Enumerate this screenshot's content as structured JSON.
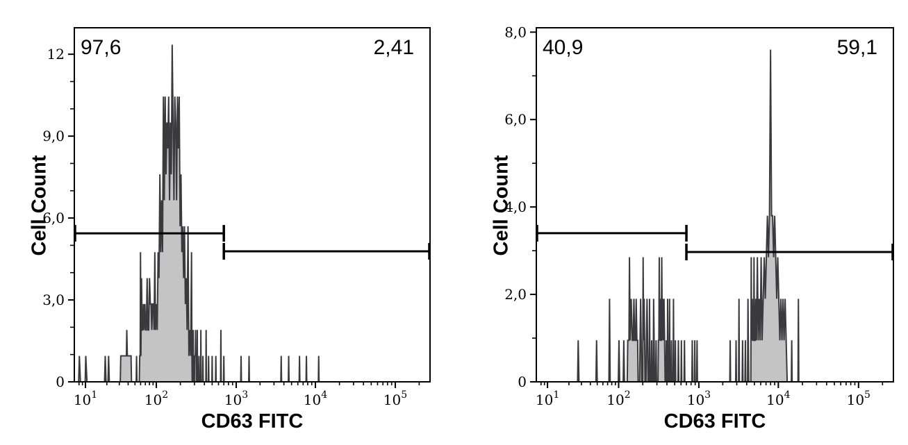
{
  "chart_data": [
    {
      "type": "area",
      "title": "",
      "xlabel": "CD63 FITC",
      "ylabel": "Cell Count",
      "x_scale": "biexponential-log",
      "x_range_log": [
        0.833,
        5.4375
      ],
      "x_ticks": [
        {
          "base": "10",
          "exp": "1",
          "log": 1
        },
        {
          "base": "10",
          "exp": "2",
          "log": 2
        },
        {
          "base": "10",
          "exp": "3",
          "log": 3
        },
        {
          "base": "10",
          "exp": "4",
          "log": 4
        },
        {
          "base": "10",
          "exp": "5",
          "log": 5
        }
      ],
      "ylim": [
        0,
        12.97
      ],
      "y_ticks": [
        {
          "label": "0",
          "v": 0
        },
        {
          "label": "3,0",
          "v": 3
        },
        {
          "label": "6,0",
          "v": 6
        },
        {
          "label": "9,0",
          "v": 9
        },
        {
          "label": "12",
          "v": 12
        }
      ],
      "y_minor_step": 1,
      "gate_labels": {
        "left": "97,6",
        "right": "2,41"
      },
      "gates": [
        {
          "y": 5.44,
          "x_from": null,
          "x_to": 700
        },
        {
          "y": 4.78,
          "x_from": 700,
          "x_to": null
        }
      ],
      "colors": {
        "line": "#3a3a3e",
        "fill": "#c4c4c4",
        "axis": "#000000"
      },
      "trace": [
        [
          6.8,
          0
        ],
        [
          7.9,
          0
        ],
        [
          8.1,
          0.95
        ],
        [
          8.4,
          0
        ],
        [
          9.9,
          0
        ],
        [
          10.1,
          0.95
        ],
        [
          10.5,
          0
        ],
        [
          18.6,
          0
        ],
        [
          19,
          0.95
        ],
        [
          19.5,
          0
        ],
        [
          20.8,
          0
        ],
        [
          21.2,
          0.95
        ],
        [
          21.7,
          0
        ],
        [
          31,
          0
        ],
        [
          31.5,
          0.95
        ],
        [
          37.8,
          0.95
        ],
        [
          38.3,
          1.9
        ],
        [
          39,
          0.95
        ],
        [
          44,
          0.95
        ],
        [
          44.6,
          0
        ],
        [
          52,
          0
        ],
        [
          52.6,
          0.95
        ],
        [
          53.3,
          0
        ],
        [
          57.5,
          0
        ],
        [
          58.3,
          0.95
        ],
        [
          59.2,
          0.95
        ],
        [
          59.8,
          4.75
        ],
        [
          60.6,
          0.95
        ],
        [
          61.8,
          3.8
        ],
        [
          63.2,
          1.9
        ],
        [
          64.5,
          1.9
        ],
        [
          65.8,
          2.85
        ],
        [
          67.2,
          1.9
        ],
        [
          69,
          2.85
        ],
        [
          70.8,
          1.9
        ],
        [
          72.3,
          1.9
        ],
        [
          74.2,
          3.8
        ],
        [
          76,
          1.9
        ],
        [
          78,
          1.9
        ],
        [
          80.2,
          3.8
        ],
        [
          82.3,
          2.85
        ],
        [
          84.4,
          2.85
        ],
        [
          86.3,
          1.9
        ],
        [
          88.5,
          2.85
        ],
        [
          90.8,
          2.85
        ],
        [
          93,
          1.9
        ],
        [
          95.3,
          4.75
        ],
        [
          97.5,
          1.9
        ],
        [
          100,
          2.85
        ],
        [
          102.7,
          1.9
        ],
        [
          105.3,
          4.75
        ],
        [
          108,
          3.8
        ],
        [
          110.8,
          7.6
        ],
        [
          113.6,
          4.75
        ],
        [
          116.6,
          6.65
        ],
        [
          119.6,
          4.75
        ],
        [
          122.7,
          10.45
        ],
        [
          125.8,
          6.65
        ],
        [
          129,
          10.45
        ],
        [
          132.3,
          7.6
        ],
        [
          135.7,
          9.5
        ],
        [
          139.2,
          8.55
        ],
        [
          142.8,
          10.45
        ],
        [
          146.4,
          6.65
        ],
        [
          150.2,
          9.5
        ],
        [
          154,
          7.6
        ],
        [
          158,
          12.35
        ],
        [
          162,
          9.5
        ],
        [
          166.2,
          6.65
        ],
        [
          170.4,
          10.45
        ],
        [
          174.8,
          9.5
        ],
        [
          179.3,
          6.65
        ],
        [
          183.9,
          10.45
        ],
        [
          188.6,
          8.55
        ],
        [
          193.5,
          10.45
        ],
        [
          198.4,
          5.7
        ],
        [
          203.5,
          7.6
        ],
        [
          208.7,
          4.75
        ],
        [
          214.1,
          5.7
        ],
        [
          219.6,
          3.8
        ],
        [
          225.2,
          5.7
        ],
        [
          231,
          2.85
        ],
        [
          237,
          3.8
        ],
        [
          243,
          1.9
        ],
        [
          249.3,
          5.7
        ],
        [
          255.7,
          0.95
        ],
        [
          262.2,
          1.9
        ],
        [
          269,
          0.95
        ],
        [
          275.9,
          4.75
        ],
        [
          279,
          0.95
        ],
        [
          281,
          0
        ],
        [
          288,
          0
        ],
        [
          290,
          1.9
        ],
        [
          292.4,
          0
        ],
        [
          300,
          0
        ],
        [
          302,
          0.95
        ],
        [
          308,
          0.95
        ],
        [
          310,
          1.9
        ],
        [
          312,
          0.95
        ],
        [
          316,
          0.95
        ],
        [
          318,
          0
        ],
        [
          323,
          0
        ],
        [
          325.6,
          1.9
        ],
        [
          328,
          0
        ],
        [
          339,
          0
        ],
        [
          342,
          0.95
        ],
        [
          345,
          0
        ],
        [
          358,
          0
        ],
        [
          361,
          1.9
        ],
        [
          364,
          0
        ],
        [
          380,
          0
        ],
        [
          383,
          0.95
        ],
        [
          386,
          0
        ],
        [
          417,
          0
        ],
        [
          420,
          1.9
        ],
        [
          424,
          0
        ],
        [
          447,
          0
        ],
        [
          451,
          0.95
        ],
        [
          455,
          0
        ],
        [
          496,
          0
        ],
        [
          500,
          0.95
        ],
        [
          504,
          0
        ],
        [
          551,
          0
        ],
        [
          556,
          0.95
        ],
        [
          561,
          0
        ],
        [
          637,
          0
        ],
        [
          643,
          1.9
        ],
        [
          649,
          0
        ],
        [
          694,
          0
        ],
        [
          700,
          0.95
        ],
        [
          706,
          0
        ],
        [
          1140,
          0
        ],
        [
          1152,
          0.95
        ],
        [
          1164,
          0
        ],
        [
          1438,
          0
        ],
        [
          1453,
          0.95
        ],
        [
          1468,
          0
        ],
        [
          3662,
          0
        ],
        [
          3700,
          0.95
        ],
        [
          3738,
          0
        ],
        [
          4554,
          0
        ],
        [
          4600,
          0.95
        ],
        [
          4647,
          0
        ],
        [
          6236,
          0
        ],
        [
          6300,
          0.95
        ],
        [
          6365,
          0
        ],
        [
          7621,
          0
        ],
        [
          7700,
          0.95
        ],
        [
          7779,
          0
        ],
        [
          10890,
          0
        ],
        [
          11000,
          0.95
        ],
        [
          11113,
          0
        ],
        [
          250000,
          0
        ]
      ]
    },
    {
      "type": "area",
      "title": "",
      "xlabel": "CD63 FITC",
      "ylabel": "Cell Count",
      "x_scale": "biexponential-log",
      "x_range_log": [
        0.833,
        5.4375
      ],
      "x_ticks": [
        {
          "base": "10",
          "exp": "1",
          "log": 1
        },
        {
          "base": "10",
          "exp": "2",
          "log": 2
        },
        {
          "base": "10",
          "exp": "3",
          "log": 3
        },
        {
          "base": "10",
          "exp": "4",
          "log": 4
        },
        {
          "base": "10",
          "exp": "5",
          "log": 5
        }
      ],
      "ylim": [
        0,
        8.1
      ],
      "y_ticks": [
        {
          "label": "0",
          "v": 0
        },
        {
          "label": "2,0",
          "v": 2
        },
        {
          "label": "4,0",
          "v": 4
        },
        {
          "label": "6,0",
          "v": 6
        },
        {
          "label": "8,0",
          "v": 8
        }
      ],
      "y_minor_step": 1,
      "gate_labels": {
        "left": "40,9",
        "right": "59,1"
      },
      "gates": [
        {
          "y": 3.4,
          "x_from": null,
          "x_to": 700
        },
        {
          "y": 2.97,
          "x_from": 700,
          "x_to": null
        }
      ],
      "colors": {
        "line": "#3a3a3e",
        "fill": "#c4c4c4",
        "axis": "#000000"
      },
      "trace": [
        [
          6.8,
          0
        ],
        [
          26.5,
          0
        ],
        [
          27,
          0.95
        ],
        [
          27.7,
          0
        ],
        [
          48,
          0
        ],
        [
          49,
          0.95
        ],
        [
          50,
          0
        ],
        [
          73,
          0
        ],
        [
          74.5,
          1.9
        ],
        [
          76,
          0
        ],
        [
          99,
          0
        ],
        [
          101,
          0.95
        ],
        [
          103,
          0
        ],
        [
          114,
          0
        ],
        [
          116,
          0.95
        ],
        [
          118,
          0
        ],
        [
          128,
          0
        ],
        [
          130,
          0.95
        ],
        [
          134.5,
          0.95
        ],
        [
          136.5,
          2.85
        ],
        [
          139,
          0.95
        ],
        [
          143.5,
          1.9
        ],
        [
          148,
          0.95
        ],
        [
          152,
          0.95
        ],
        [
          155,
          1.9
        ],
        [
          158.5,
          0.95
        ],
        [
          162.5,
          0.95
        ],
        [
          165.5,
          1.9
        ],
        [
          169,
          0.95
        ],
        [
          172.5,
          0.95
        ],
        [
          175,
          0
        ],
        [
          182.5,
          0
        ],
        [
          185,
          0.95
        ],
        [
          188,
          1.9
        ],
        [
          191,
          0.95
        ],
        [
          194,
          0
        ],
        [
          199.5,
          0
        ],
        [
          202,
          2.85
        ],
        [
          205,
          0.95
        ],
        [
          208,
          1.9
        ],
        [
          211,
          0.95
        ],
        [
          213.5,
          0
        ],
        [
          219.5,
          0
        ],
        [
          222,
          0.95
        ],
        [
          226,
          1.9
        ],
        [
          229.5,
          0.95
        ],
        [
          233,
          0
        ],
        [
          240,
          0
        ],
        [
          243,
          1.9
        ],
        [
          246.5,
          0
        ],
        [
          254.5,
          0
        ],
        [
          258,
          0.95
        ],
        [
          261.5,
          0
        ],
        [
          269.5,
          0
        ],
        [
          273,
          1.9
        ],
        [
          277,
          0.95
        ],
        [
          280.5,
          0
        ],
        [
          289.5,
          0
        ],
        [
          293,
          0.95
        ],
        [
          296.5,
          0
        ],
        [
          309.5,
          0
        ],
        [
          313,
          0.95
        ],
        [
          317.5,
          0.95
        ],
        [
          321,
          2.85
        ],
        [
          325,
          0.95
        ],
        [
          330,
          1.9
        ],
        [
          335,
          0.95
        ],
        [
          340,
          0.95
        ],
        [
          345,
          2.85
        ],
        [
          350.5,
          0.95
        ],
        [
          356,
          1.9
        ],
        [
          362,
          0.95
        ],
        [
          368,
          1.9
        ],
        [
          374,
          0.95
        ],
        [
          380,
          0
        ],
        [
          389.5,
          0
        ],
        [
          393,
          0.95
        ],
        [
          397,
          0
        ],
        [
          404.5,
          0
        ],
        [
          408,
          1.9
        ],
        [
          412,
          0.95
        ],
        [
          416,
          0
        ],
        [
          427.5,
          0
        ],
        [
          432,
          1.9
        ],
        [
          436.5,
          0
        ],
        [
          450,
          0
        ],
        [
          455,
          0.95
        ],
        [
          460,
          0
        ],
        [
          477.5,
          0
        ],
        [
          483,
          1.9
        ],
        [
          488.5,
          0
        ],
        [
          504.5,
          0
        ],
        [
          510,
          0.95
        ],
        [
          515.5,
          0
        ],
        [
          549.5,
          0
        ],
        [
          556,
          0.95
        ],
        [
          562.5,
          0
        ],
        [
          599.5,
          0
        ],
        [
          606,
          0.95
        ],
        [
          612.5,
          0
        ],
        [
          654.5,
          0
        ],
        [
          662,
          0.95
        ],
        [
          669.5,
          0
        ],
        [
          819,
          0
        ],
        [
          828,
          0.95
        ],
        [
          837,
          0
        ],
        [
          880,
          0
        ],
        [
          890,
          0.95
        ],
        [
          900,
          0
        ],
        [
          939.5,
          0
        ],
        [
          950,
          0.95
        ],
        [
          960.5,
          0
        ],
        [
          2452,
          0
        ],
        [
          2480,
          0.95
        ],
        [
          2508,
          0
        ],
        [
          2907,
          0
        ],
        [
          2940,
          0.95
        ],
        [
          2973,
          0
        ],
        [
          3164,
          0
        ],
        [
          3200,
          1.9
        ],
        [
          3236,
          0
        ],
        [
          3510,
          0
        ],
        [
          3550,
          0.95
        ],
        [
          3590,
          0
        ],
        [
          3807,
          0
        ],
        [
          3850,
          0.95
        ],
        [
          3893,
          0
        ],
        [
          4104,
          0
        ],
        [
          4150,
          1.9
        ],
        [
          4197,
          0.95
        ],
        [
          4244,
          0
        ],
        [
          4510,
          0
        ],
        [
          4560,
          2.85
        ],
        [
          4611,
          0.95
        ],
        [
          4700,
          1.9
        ],
        [
          4790,
          0.95
        ],
        [
          4890,
          0.95
        ],
        [
          4945,
          2.85
        ],
        [
          5000,
          0.95
        ],
        [
          5110,
          0.95
        ],
        [
          5200,
          1.9
        ],
        [
          5310,
          0.95
        ],
        [
          5450,
          2.85
        ],
        [
          5590,
          0.95
        ],
        [
          5750,
          1.9
        ],
        [
          5910,
          0.95
        ],
        [
          6080,
          2.85
        ],
        [
          6250,
          0.95
        ],
        [
          6450,
          1.9
        ],
        [
          6650,
          2.85
        ],
        [
          6860,
          1.9
        ],
        [
          7070,
          2.85
        ],
        [
          7290,
          3.8
        ],
        [
          7510,
          2.85
        ],
        [
          7740,
          3.8
        ],
        [
          7980,
          7.6
        ],
        [
          8220,
          3.8
        ],
        [
          8470,
          3.8
        ],
        [
          8730,
          2.85
        ],
        [
          9000,
          3.8
        ],
        [
          9270,
          2.85
        ],
        [
          9550,
          1.9
        ],
        [
          9840,
          2.85
        ],
        [
          10140,
          1.9
        ],
        [
          10450,
          0.95
        ],
        [
          10770,
          1.9
        ],
        [
          11100,
          0.95
        ],
        [
          11440,
          1.9
        ],
        [
          11790,
          0.95
        ],
        [
          12150,
          1.9
        ],
        [
          12520,
          0.95
        ],
        [
          12900,
          0
        ],
        [
          14530,
          0
        ],
        [
          14700,
          0.95
        ],
        [
          14870,
          0
        ],
        [
          17590,
          0
        ],
        [
          17800,
          1.9
        ],
        [
          18010,
          0
        ],
        [
          250000,
          0
        ]
      ]
    }
  ]
}
